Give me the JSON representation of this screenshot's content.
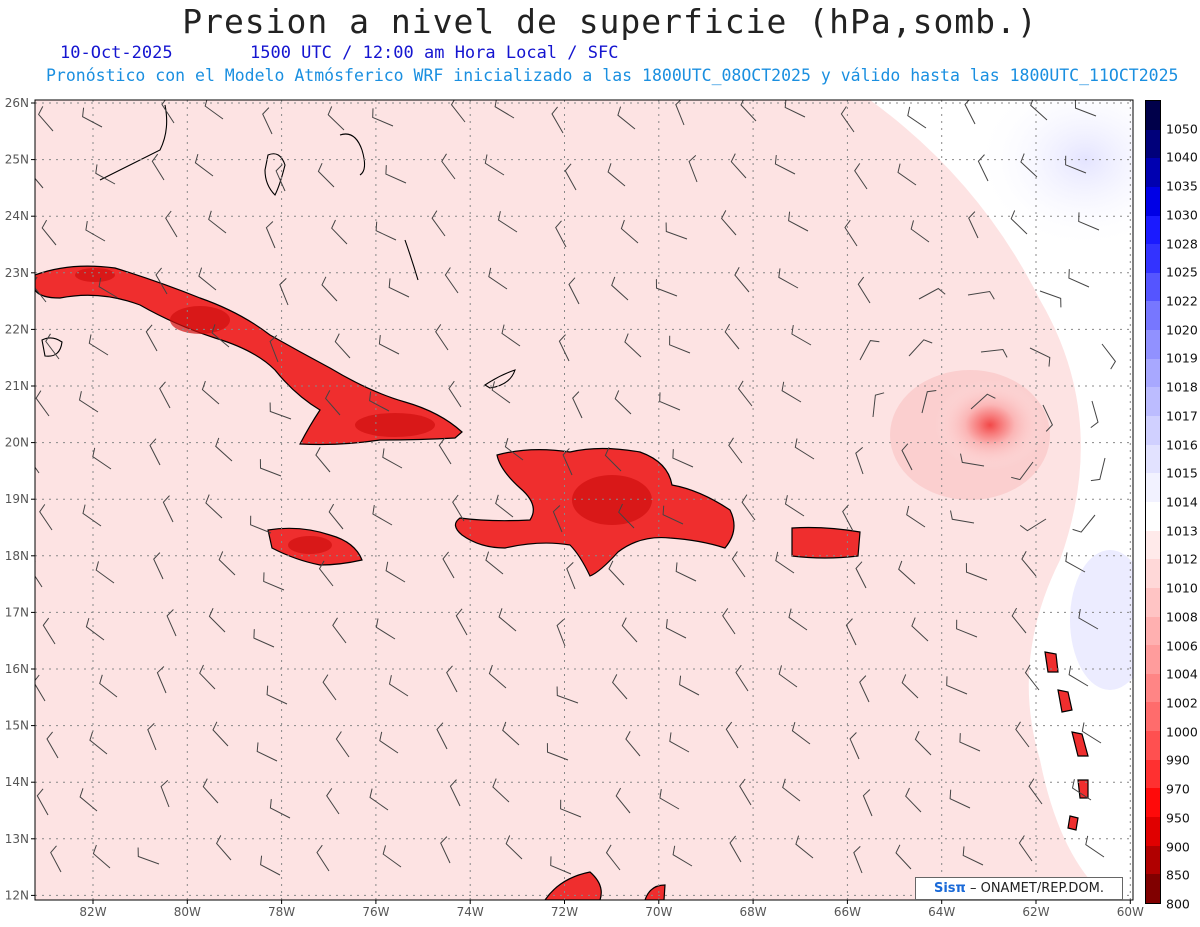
{
  "title": "Presion a nivel de superficie (hPa,somb.)",
  "date_text": "10-Oct-2025",
  "time_text": "1500 UTC / 12:00 am Hora Local / SFC",
  "model_text": "Pronóstico con el Modelo Atmósferico WRF inicializado a las 1800UTC_08OCT2025 y válido hasta las  1800UTC_11OCT2025",
  "credit": {
    "brand": "Sisπ",
    "org": "– ONAMET/REP.DOM."
  },
  "lon_ticks": [
    "82W",
    "80W",
    "78W",
    "76W",
    "74W",
    "72W",
    "70W",
    "68W",
    "66W",
    "64W",
    "62W",
    "60W"
  ],
  "lat_ticks": [
    "26N",
    "25N",
    "24N",
    "23N",
    "22N",
    "21N",
    "20N",
    "19N",
    "18N",
    "17N",
    "16N",
    "15N",
    "14N",
    "13N",
    "12N"
  ],
  "legend": {
    "labels": [
      "1050",
      "1040",
      "1035",
      "1030",
      "1028",
      "1025",
      "1022",
      "1020",
      "1019",
      "1018",
      "1017",
      "1016",
      "1015",
      "1014",
      "1013",
      "1012",
      "1010",
      "1008",
      "1006",
      "1004",
      "1002",
      "1000",
      "990",
      "970",
      "950",
      "900",
      "850",
      "800"
    ],
    "colors": [
      "#00004a",
      "#00007a",
      "#0000b0",
      "#0000e6",
      "#1a1aff",
      "#3333ff",
      "#5555ff",
      "#7777ff",
      "#9191ff",
      "#a8a8ff",
      "#bcbcff",
      "#d0d0ff",
      "#e2e2ff",
      "#f2f2ff",
      "#ffffff",
      "#ffeaea",
      "#ffd8d8",
      "#ffc4c4",
      "#ffb0b0",
      "#ff9c9c",
      "#ff8585",
      "#ff6c6c",
      "#ff5050",
      "#ff3030",
      "#ff0a0a",
      "#e00000",
      "#b00000",
      "#800000"
    ]
  },
  "colors": {
    "background_pressure": "#fde3e3",
    "land_high": "#e01515",
    "low_center": "#f35a5a"
  }
}
